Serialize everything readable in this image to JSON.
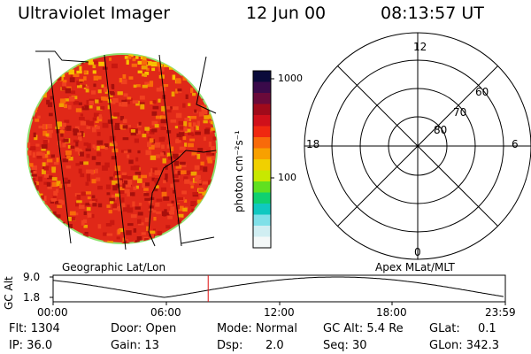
{
  "header": {
    "title": "Ultraviolet Imager",
    "date": "12 Jun 00",
    "time": "08:13:57 UT"
  },
  "colorbar": {
    "unit": "photon cm⁻²s⁻¹",
    "ticks": [
      "1000",
      "100"
    ],
    "colors": [
      "#0a0a3a",
      "#3a0a4a",
      "#6a0a3a",
      "#a00a1a",
      "#d0101a",
      "#f02810",
      "#f86a0a",
      "#f8a000",
      "#f0d000",
      "#c8e800",
      "#60e020",
      "#10d070",
      "#10c8c0",
      "#80e0e8",
      "#d0eef2",
      "#f4f8f8"
    ]
  },
  "geo_panel": {
    "label": "Geographic Lat/Lon"
  },
  "polar_panel": {
    "label": "Apex MLat/MLT",
    "mlt_labels": {
      "top": "12",
      "left": "18",
      "right": "6",
      "bottom": "0"
    },
    "lat_labels": [
      "60",
      "70",
      "80"
    ]
  },
  "altitude_plot": {
    "ylabel": "GC Alt",
    "yticks": [
      "9.0",
      "1.8"
    ],
    "xticks": [
      "00:00",
      "06:00",
      "12:00",
      "18:00",
      "23:59"
    ],
    "current_time_hours": 8.23
  },
  "info": {
    "flt": "Flt: 1304",
    "ip": "IP: 36.0",
    "door": "Door: Open",
    "gain": "Gain: 13",
    "mode": "Mode: Normal",
    "dsp_label": "Dsp:",
    "dsp_value": "2.0",
    "gc_alt": "GC Alt: 5.4 Re",
    "seq": "Seq: 30",
    "glat_label": "GLat:",
    "glat_value": "0.1",
    "glon": "GLon: 342.3"
  }
}
